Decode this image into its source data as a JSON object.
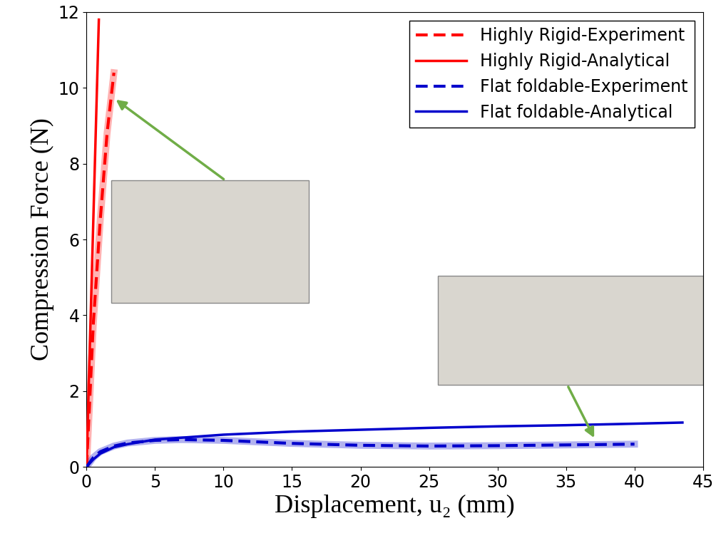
{
  "chart_data": {
    "type": "line",
    "x_label": "Displacement, u₂ (mm)",
    "y_label": "Compression Force (N)",
    "xlim": [
      0,
      45
    ],
    "xticks": [
      0,
      5,
      10,
      15,
      20,
      25,
      30,
      35,
      40,
      45
    ],
    "ylim": [
      0,
      12
    ],
    "yticks": [
      0,
      2,
      4,
      6,
      8,
      10,
      12
    ],
    "legend": "upper right",
    "series": [
      {
        "name": "Highly Rigid-Experiment",
        "color": "#ff0000",
        "line_style": "dashed",
        "x": [
          0,
          0.2,
          0.5,
          1.0,
          1.5,
          2.0
        ],
        "values": [
          0,
          1.5,
          3.8,
          6.5,
          8.8,
          10.4
        ]
      },
      {
        "name": "Highly Rigid-Analytical",
        "color": "#ff0000",
        "line_style": "solid",
        "x": [
          0,
          0.9
        ],
        "values": [
          0,
          11.8
        ]
      },
      {
        "name": "Flat foldable-Experiment",
        "color": "#0000cc",
        "line_style": "dashed",
        "x": [
          0,
          0.5,
          1,
          2,
          3,
          5,
          7,
          10,
          15,
          20,
          25,
          30,
          35,
          40
        ],
        "values": [
          0,
          0.25,
          0.4,
          0.55,
          0.63,
          0.7,
          0.72,
          0.7,
          0.62,
          0.57,
          0.55,
          0.56,
          0.58,
          0.6
        ]
      },
      {
        "name": "Flat foldable-Analytical",
        "color": "#0000cc",
        "line_style": "solid",
        "x": [
          0,
          0.5,
          1,
          2,
          3,
          5,
          10,
          15,
          20,
          25,
          30,
          35,
          40,
          43.5
        ],
        "values": [
          0,
          0.2,
          0.35,
          0.52,
          0.6,
          0.72,
          0.85,
          0.93,
          0.98,
          1.03,
          1.07,
          1.1,
          1.14,
          1.17
        ]
      }
    ]
  }
}
